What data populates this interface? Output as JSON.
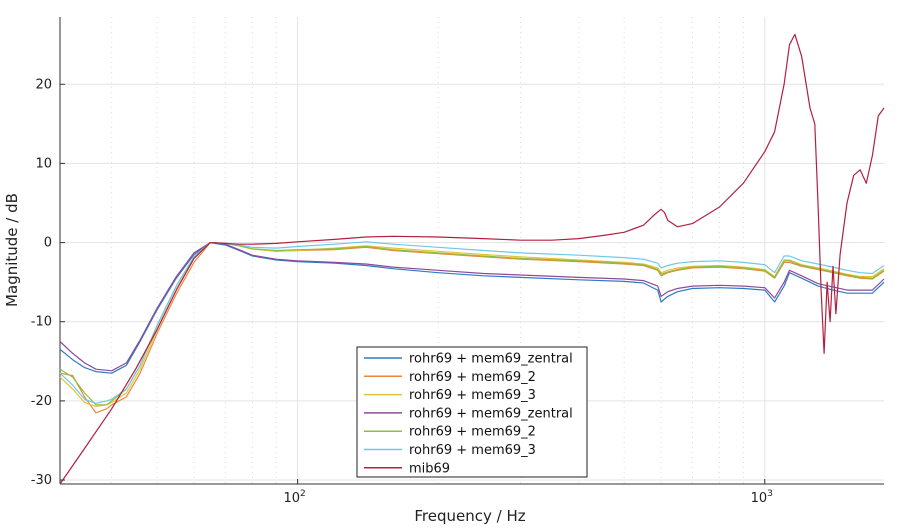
{
  "chart_data": {
    "type": "line",
    "title": "",
    "xlabel": "Frequency / Hz",
    "ylabel": "Magnitude / dB",
    "xscale": "log",
    "xlim": [
      31,
      1800
    ],
    "ylim": [
      -30.5,
      28.5
    ],
    "y_ticks": [
      20,
      10,
      0,
      -10,
      -20,
      -30
    ],
    "x_ticks": [
      {
        "value": 100,
        "label": "10",
        "exponent": "2"
      },
      {
        "value": 1000,
        "label": "10",
        "exponent": "3"
      }
    ],
    "grid": true,
    "legend_position": "lower-center",
    "series": [
      {
        "name": "rohr69 + mem69_zentral",
        "color": "#2e7bc4",
        "x": [
          31,
          33,
          35,
          37,
          40,
          43,
          46,
          50,
          55,
          60,
          65,
          70,
          75,
          80,
          90,
          100,
          120,
          140,
          160,
          200,
          250,
          300,
          400,
          500,
          550,
          590,
          600,
          620,
          650,
          700,
          800,
          900,
          1000,
          1050,
          1100,
          1130,
          1200,
          1300,
          1400,
          1500,
          1600,
          1700,
          1800
        ],
        "y": [
          -13.5,
          -14.8,
          -15.8,
          -16.3,
          -16.5,
          -15.5,
          -12.5,
          -8.5,
          -4.5,
          -1.5,
          0,
          -0.3,
          -1,
          -1.7,
          -2.2,
          -2.4,
          -2.6,
          -2.9,
          -3.3,
          -3.8,
          -4.2,
          -4.4,
          -4.7,
          -4.9,
          -5.1,
          -6,
          -7.5,
          -6.8,
          -6.2,
          -5.8,
          -5.7,
          -5.8,
          -6,
          -7.5,
          -5.5,
          -3.8,
          -4.5,
          -5.5,
          -6,
          -6.4,
          -6.4,
          -6.4,
          -5
        ]
      },
      {
        "name": "rohr69 + mem69_2",
        "color": "#e8893a",
        "x": [
          31,
          33,
          35,
          37,
          39,
          40,
          43,
          46,
          50,
          55,
          60,
          65,
          70,
          75,
          80,
          90,
          100,
          120,
          140,
          160,
          200,
          250,
          300,
          400,
          500,
          550,
          590,
          600,
          620,
          650,
          700,
          800,
          900,
          1000,
          1050,
          1100,
          1130,
          1200,
          1300,
          1400,
          1500,
          1600,
          1700,
          1800
        ],
        "y": [
          -16.5,
          -16.8,
          -19.5,
          -21.5,
          -21,
          -20.5,
          -19.5,
          -16.5,
          -11.5,
          -6.5,
          -2.5,
          0,
          -0.1,
          -0.4,
          -0.8,
          -1.1,
          -1,
          -0.9,
          -0.6,
          -1,
          -1.4,
          -1.8,
          -2.1,
          -2.4,
          -2.7,
          -2.9,
          -3.5,
          -4.2,
          -3.8,
          -3.5,
          -3.2,
          -3.1,
          -3.3,
          -3.6,
          -4.5,
          -2.5,
          -2.5,
          -3,
          -3.4,
          -3.8,
          -4.2,
          -4.5,
          -4.6,
          -3.6
        ]
      },
      {
        "name": "rohr69 + mem69_3",
        "color": "#e6c23a",
        "x": [
          31,
          33,
          35,
          37,
          39,
          40,
          43,
          46,
          50,
          55,
          60,
          65,
          70,
          75,
          80,
          90,
          100,
          120,
          140,
          160,
          200,
          250,
          300,
          400,
          500,
          550,
          590,
          600,
          620,
          650,
          700,
          800,
          900,
          1000,
          1050,
          1100,
          1130,
          1200,
          1300,
          1400,
          1500,
          1600,
          1700,
          1800
        ],
        "y": [
          -17,
          -18.5,
          -20.2,
          -20.7,
          -20.5,
          -20.2,
          -19,
          -16,
          -11,
          -6,
          -2,
          0,
          -0.1,
          -0.4,
          -0.8,
          -1.1,
          -1,
          -0.7,
          -0.4,
          -0.7,
          -1.1,
          -1.5,
          -1.8,
          -2.2,
          -2.5,
          -2.7,
          -3.2,
          -3.8,
          -3.5,
          -3.2,
          -3,
          -2.9,
          -3.1,
          -3.4,
          -4.3,
          -2.2,
          -2.2,
          -2.8,
          -3.2,
          -3.6,
          -4,
          -4.3,
          -4.3,
          -3.3
        ]
      },
      {
        "name": "rohr69 + mem69_zentral",
        "color": "#8e4a9c",
        "x": [
          31,
          33,
          35,
          37,
          40,
          43,
          46,
          50,
          55,
          60,
          65,
          70,
          75,
          80,
          90,
          100,
          120,
          140,
          160,
          200,
          250,
          300,
          400,
          500,
          550,
          590,
          600,
          620,
          650,
          700,
          800,
          900,
          1000,
          1050,
          1100,
          1130,
          1200,
          1300,
          1400,
          1500,
          1600,
          1700,
          1800
        ],
        "y": [
          -12.5,
          -14,
          -15.2,
          -16,
          -16.2,
          -15.2,
          -12.3,
          -8.3,
          -4.3,
          -1.3,
          0,
          -0.2,
          -0.9,
          -1.6,
          -2.1,
          -2.3,
          -2.5,
          -2.7,
          -3.1,
          -3.5,
          -3.9,
          -4.1,
          -4.4,
          -4.6,
          -4.8,
          -5.5,
          -6.8,
          -6.2,
          -5.8,
          -5.5,
          -5.4,
          -5.5,
          -5.7,
          -7,
          -5,
          -3.5,
          -4.2,
          -5.2,
          -5.6,
          -6,
          -6,
          -6,
          -4.6
        ]
      },
      {
        "name": "rohr69 + mem69_2",
        "color": "#8fbf3f",
        "x": [
          31,
          33,
          35,
          37,
          39,
          40,
          43,
          46,
          50,
          55,
          60,
          65,
          70,
          75,
          80,
          90,
          100,
          120,
          140,
          160,
          200,
          250,
          300,
          400,
          500,
          550,
          590,
          600,
          620,
          650,
          700,
          800,
          900,
          1000,
          1050,
          1100,
          1130,
          1200,
          1300,
          1400,
          1500,
          1600,
          1700,
          1800
        ],
        "y": [
          -16,
          -17,
          -19,
          -20.5,
          -20.5,
          -20,
          -18.5,
          -15.5,
          -10.5,
          -5.5,
          -1.8,
          0,
          -0.1,
          -0.4,
          -0.8,
          -1,
          -0.9,
          -0.8,
          -0.5,
          -0.9,
          -1.3,
          -1.7,
          -2,
          -2.3,
          -2.6,
          -2.8,
          -3.4,
          -4,
          -3.7,
          -3.4,
          -3.1,
          -3,
          -3.2,
          -3.5,
          -4.4,
          -2.3,
          -2.3,
          -2.9,
          -3.3,
          -3.7,
          -4.1,
          -4.4,
          -4.5,
          -3.5
        ]
      },
      {
        "name": "rohr69 + mem69_3",
        "color": "#6fc8e8",
        "x": [
          31,
          33,
          35,
          37,
          39,
          40,
          43,
          46,
          50,
          55,
          60,
          65,
          70,
          75,
          80,
          90,
          100,
          120,
          140,
          160,
          200,
          250,
          300,
          400,
          500,
          550,
          590,
          600,
          620,
          650,
          700,
          800,
          900,
          1000,
          1050,
          1100,
          1130,
          1200,
          1300,
          1400,
          1500,
          1600,
          1700,
          1800
        ],
        "y": [
          -16.5,
          -18,
          -19.8,
          -20.3,
          -20,
          -19.8,
          -18.5,
          -15.5,
          -10.5,
          -5.5,
          -1.8,
          0,
          -0.1,
          -0.3,
          -0.6,
          -0.7,
          -0.5,
          -0.2,
          0.1,
          -0.2,
          -0.6,
          -1,
          -1.3,
          -1.6,
          -1.9,
          -2.1,
          -2.6,
          -3.2,
          -2.9,
          -2.6,
          -2.4,
          -2.3,
          -2.5,
          -2.8,
          -3.8,
          -1.7,
          -1.7,
          -2.3,
          -2.7,
          -3.1,
          -3.5,
          -3.8,
          -3.9,
          -2.9
        ]
      },
      {
        "name": "mib69",
        "color": "#b3203f",
        "x": [
          31,
          35,
          40,
          45,
          50,
          55,
          60,
          65,
          70,
          75,
          80,
          90,
          100,
          120,
          140,
          160,
          200,
          250,
          300,
          350,
          400,
          450,
          500,
          550,
          580,
          600,
          610,
          620,
          650,
          700,
          800,
          900,
          1000,
          1050,
          1100,
          1130,
          1160,
          1200,
          1250,
          1280,
          1300,
          1320,
          1340,
          1360,
          1380,
          1400,
          1420,
          1450,
          1500,
          1550,
          1600,
          1650,
          1700,
          1750,
          1800
        ],
        "y": [
          -30.5,
          -26,
          -21,
          -16,
          -11,
          -6,
          -2,
          0,
          -0.1,
          -0.2,
          -0.2,
          -0.1,
          0.1,
          0.4,
          0.7,
          0.8,
          0.7,
          0.5,
          0.3,
          0.3,
          0.5,
          0.9,
          1.3,
          2.2,
          3.5,
          4.2,
          3.8,
          2.8,
          2,
          2.4,
          4.5,
          7.5,
          11.5,
          14,
          20,
          25,
          26.3,
          23.5,
          17,
          15,
          5,
          -6,
          -14,
          -5,
          -10,
          -3,
          -9,
          -1.5,
          5,
          8.5,
          9.2,
          7.5,
          11,
          16,
          17
        ]
      }
    ]
  },
  "legend": {
    "items": [
      {
        "label": "rohr69 + mem69_zentral",
        "color": "#2e7bc4"
      },
      {
        "label": "rohr69 + mem69_2",
        "color": "#e8893a"
      },
      {
        "label": "rohr69 + mem69_3",
        "color": "#e6c23a"
      },
      {
        "label": "rohr69 + mem69_zentral",
        "color": "#8e4a9c"
      },
      {
        "label": "rohr69 + mem69_2",
        "color": "#8fbf3f"
      },
      {
        "label": "rohr69 + mem69_3",
        "color": "#6fc8e8"
      },
      {
        "label": "mib69",
        "color": "#b3203f"
      }
    ]
  }
}
